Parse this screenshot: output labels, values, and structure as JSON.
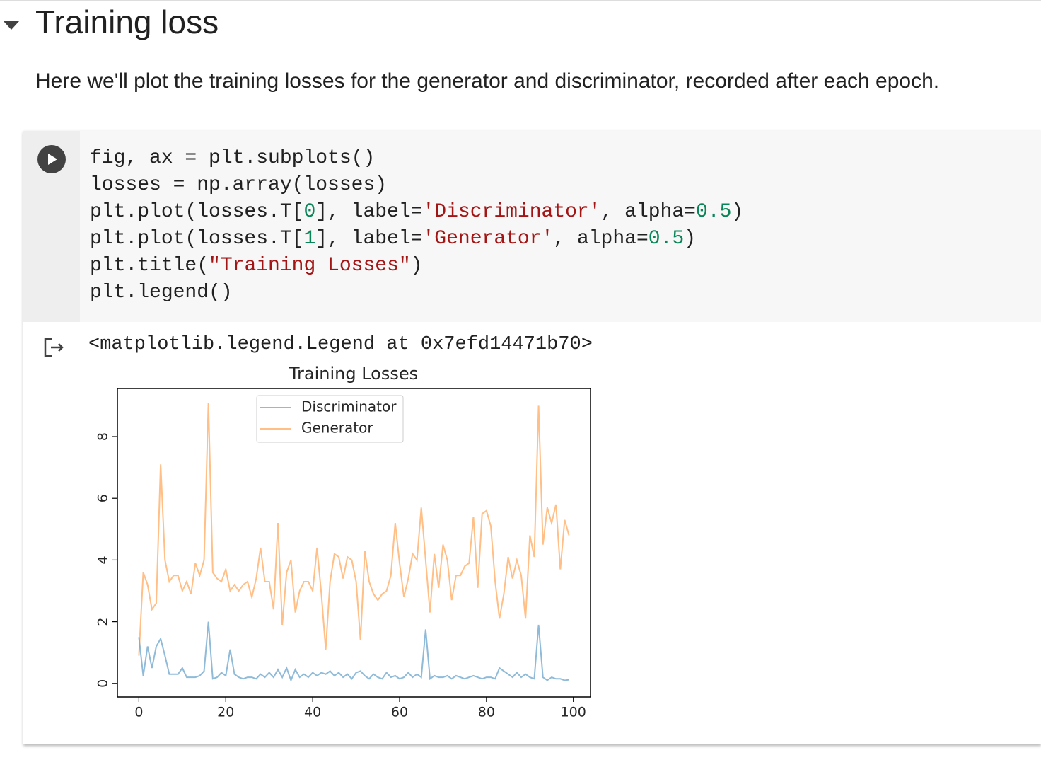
{
  "header": {
    "title": "Training loss"
  },
  "text": "Here we'll plot the training losses for the generator and discriminator, recorded after each epoch.",
  "code": {
    "lines": [
      [
        {
          "text": "fig, ax = plt.subplots()",
          "color": "#212121"
        }
      ],
      [
        {
          "text": "losses = np.array(losses)",
          "color": "#212121"
        }
      ],
      [
        {
          "text": "plt.plot(losses.T[",
          "color": "#212121"
        },
        {
          "text": "0",
          "color": "#098658"
        },
        {
          "text": "], label=",
          "color": "#212121"
        },
        {
          "text": "'Discriminator'",
          "color": "#a31515"
        },
        {
          "text": ", alpha=",
          "color": "#212121"
        },
        {
          "text": "0.5",
          "color": "#098658"
        },
        {
          "text": ")",
          "color": "#212121"
        }
      ],
      [
        {
          "text": "plt.plot(losses.T[",
          "color": "#212121"
        },
        {
          "text": "1",
          "color": "#098658"
        },
        {
          "text": "], label=",
          "color": "#212121"
        },
        {
          "text": "'Generator'",
          "color": "#a31515"
        },
        {
          "text": ", alpha=",
          "color": "#212121"
        },
        {
          "text": "0.5",
          "color": "#098658"
        },
        {
          "text": ")",
          "color": "#212121"
        }
      ],
      [
        {
          "text": "plt.title(",
          "color": "#212121"
        },
        {
          "text": "\"Training Losses\"",
          "color": "#a31515"
        },
        {
          "text": ")",
          "color": "#212121"
        }
      ],
      [
        {
          "text": "plt.legend()",
          "color": "#212121"
        }
      ]
    ]
  },
  "output": {
    "text": "<matplotlib.legend.Legend at 0x7efd14471b70>"
  },
  "chart_data": {
    "type": "line",
    "title": "Training Losses",
    "x": [
      0,
      1,
      2,
      3,
      4,
      5,
      6,
      7,
      8,
      9,
      10,
      11,
      12,
      13,
      14,
      15,
      16,
      17,
      18,
      19,
      20,
      21,
      22,
      23,
      24,
      25,
      26,
      27,
      28,
      29,
      30,
      31,
      32,
      33,
      34,
      35,
      36,
      37,
      38,
      39,
      40,
      41,
      42,
      43,
      44,
      45,
      46,
      47,
      48,
      49,
      50,
      51,
      52,
      53,
      54,
      55,
      56,
      57,
      58,
      59,
      60,
      61,
      62,
      63,
      64,
      65,
      66,
      67,
      68,
      69,
      70,
      71,
      72,
      73,
      74,
      75,
      76,
      77,
      78,
      79,
      80,
      81,
      82,
      83,
      84,
      85,
      86,
      87,
      88,
      89,
      90,
      91,
      92,
      93,
      94,
      95,
      96,
      97,
      98,
      99
    ],
    "series": [
      {
        "name": "Discriminator",
        "color": "#1f77b4",
        "alpha": 0.5,
        "values": [
          1.5,
          0.25,
          1.2,
          0.5,
          1.2,
          1.45,
          0.9,
          0.3,
          0.3,
          0.3,
          0.5,
          0.2,
          0.2,
          0.2,
          0.25,
          0.4,
          2.0,
          0.15,
          0.2,
          0.35,
          0.25,
          1.1,
          0.3,
          0.2,
          0.15,
          0.2,
          0.2,
          0.15,
          0.3,
          0.2,
          0.35,
          0.2,
          0.45,
          0.2,
          0.5,
          0.1,
          0.45,
          0.2,
          0.3,
          0.2,
          0.35,
          0.25,
          0.35,
          0.3,
          0.4,
          0.25,
          0.35,
          0.2,
          0.3,
          0.15,
          0.35,
          0.4,
          0.25,
          0.15,
          0.3,
          0.2,
          0.15,
          0.35,
          0.2,
          0.25,
          0.15,
          0.2,
          0.35,
          0.2,
          0.3,
          0.2,
          1.75,
          0.15,
          0.25,
          0.2,
          0.2,
          0.25,
          0.15,
          0.25,
          0.2,
          0.15,
          0.2,
          0.25,
          0.2,
          0.15,
          0.2,
          0.2,
          0.15,
          0.5,
          0.4,
          0.3,
          0.2,
          0.35,
          0.2,
          0.3,
          0.2,
          0.15,
          1.9,
          0.2,
          0.1,
          0.2,
          0.15,
          0.15,
          0.1,
          0.12
        ]
      },
      {
        "name": "Generator",
        "color": "#ff7f0e",
        "alpha": 0.5,
        "values": [
          0.9,
          3.6,
          3.2,
          2.4,
          2.6,
          7.1,
          4.0,
          3.3,
          3.5,
          3.5,
          3.0,
          3.3,
          2.9,
          3.9,
          3.5,
          4.0,
          9.1,
          3.6,
          3.4,
          3.3,
          3.7,
          3.0,
          3.2,
          3.0,
          3.2,
          3.3,
          2.8,
          3.4,
          4.4,
          3.3,
          3.3,
          2.4,
          5.2,
          1.9,
          3.6,
          4.0,
          2.3,
          3.0,
          3.3,
          3.3,
          3.0,
          4.4,
          2.9,
          1.1,
          3.3,
          4.2,
          4.1,
          3.4,
          4.1,
          4.0,
          3.3,
          1.4,
          4.3,
          3.3,
          2.9,
          2.7,
          2.9,
          3.0,
          3.5,
          5.2,
          3.9,
          2.8,
          3.4,
          4.2,
          4.0,
          5.7,
          4.0,
          2.3,
          4.2,
          3.1,
          4.5,
          4.0,
          2.7,
          3.5,
          3.5,
          3.8,
          3.9,
          5.4,
          3.1,
          5.5,
          5.6,
          5.1,
          3.3,
          2.1,
          2.9,
          4.1,
          3.4,
          4.0,
          3.5,
          2.1,
          4.8,
          4.1,
          9.0,
          4.5,
          5.7,
          5.2,
          5.8,
          3.7,
          5.3,
          4.8
        ]
      }
    ],
    "xlim": [
      -4.95,
      103.95
    ],
    "xticks": [
      0,
      20,
      40,
      60,
      80,
      100
    ],
    "ylim": [
      -0.44,
      9.56
    ],
    "yticks": [
      0,
      2,
      4,
      6,
      8
    ],
    "grid": false,
    "legend": "upper center"
  }
}
